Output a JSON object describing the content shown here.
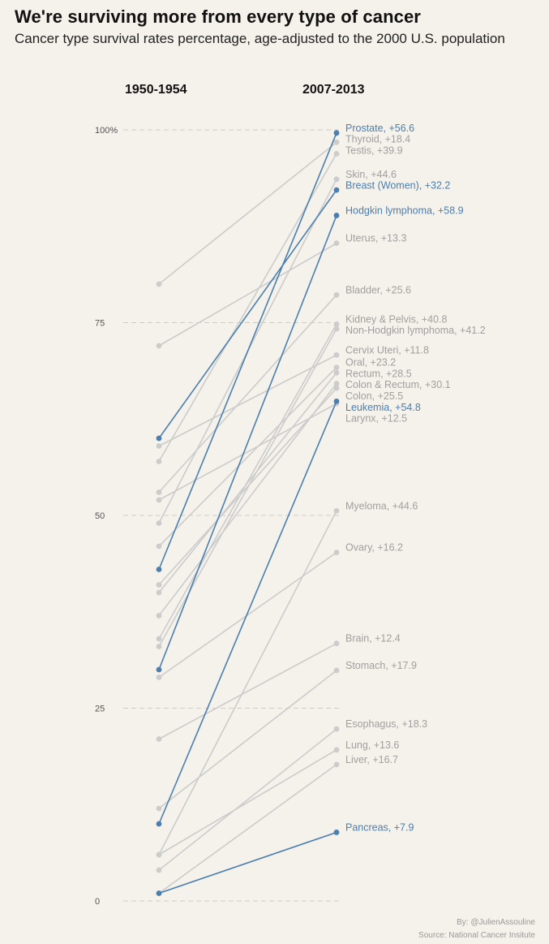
{
  "title": "We're surviving more from every type of cancer",
  "subtitle": "Cancer type survival rates percentage, age-adjusted to the 2000 U.S. population",
  "credit_by": "By: @JulienAssouline",
  "credit_source": "Source: National Cancer Insitute",
  "colors": {
    "highlight": "#4a7fb0",
    "muted": "#cccccc",
    "muted_label": "#a0a0a0",
    "grid": "#d0ccc6",
    "background": "#f5f1eb"
  },
  "chart_data": {
    "type": "slope",
    "columns": [
      "1950-1954",
      "2007-2013"
    ],
    "ylim": [
      0,
      100
    ],
    "yticks": [
      0,
      25,
      50,
      75,
      100
    ],
    "ytick_labels": [
      "0",
      "25",
      "50",
      "75",
      "100%"
    ],
    "grid": "dashed-horizontal",
    "series": [
      {
        "name": "Prostate",
        "start": 43,
        "end": 99.6,
        "change_label": "+56.6",
        "highlight": true
      },
      {
        "name": "Thyroid",
        "start": 80,
        "end": 98.4,
        "change_label": "+18.4",
        "highlight": false
      },
      {
        "name": "Testis",
        "start": 57,
        "end": 96.9,
        "change_label": "+39.9",
        "highlight": false
      },
      {
        "name": "Skin",
        "start": 49,
        "end": 93.6,
        "change_label": "+44.6",
        "highlight": false
      },
      {
        "name": "Breast (Women)",
        "start": 60,
        "end": 92.2,
        "change_label": "+32.2",
        "highlight": true
      },
      {
        "name": "Hodgkin lymphoma",
        "start": 30,
        "end": 88.9,
        "change_label": "+58.9",
        "highlight": true
      },
      {
        "name": "Uterus",
        "start": 72,
        "end": 85.3,
        "change_label": "+13.3",
        "highlight": false
      },
      {
        "name": "Bladder",
        "start": 53,
        "end": 78.6,
        "change_label": "+25.6",
        "highlight": false
      },
      {
        "name": "Kidney & Pelvis",
        "start": 34,
        "end": 74.8,
        "change_label": "+40.8",
        "highlight": false
      },
      {
        "name": "Non-Hodgkin lymphoma",
        "start": 33,
        "end": 74.2,
        "change_label": "+41.2",
        "highlight": false
      },
      {
        "name": "Cervix Uteri",
        "start": 59,
        "end": 70.8,
        "change_label": "+11.8",
        "highlight": false
      },
      {
        "name": "Oral",
        "start": 46,
        "end": 69.2,
        "change_label": "+23.2",
        "highlight": false
      },
      {
        "name": "Rectum",
        "start": 40,
        "end": 68.5,
        "change_label": "+28.5",
        "highlight": false
      },
      {
        "name": "Colon & Rectum",
        "start": 37,
        "end": 67.1,
        "change_label": "+30.1",
        "highlight": false
      },
      {
        "name": "Colon",
        "start": 41,
        "end": 66.5,
        "change_label": "+25.5",
        "highlight": false
      },
      {
        "name": "Leukemia",
        "start": 10,
        "end": 64.8,
        "change_label": "+54.8",
        "highlight": true
      },
      {
        "name": "Larynx",
        "start": 52,
        "end": 64.5,
        "change_label": "+12.5",
        "highlight": false
      },
      {
        "name": "Myeloma",
        "start": 6,
        "end": 50.6,
        "change_label": "+44.6",
        "highlight": false
      },
      {
        "name": "Ovary",
        "start": 29,
        "end": 45.2,
        "change_label": "+16.2",
        "highlight": false
      },
      {
        "name": "Brain",
        "start": 21,
        "end": 33.4,
        "change_label": "+12.4",
        "highlight": false
      },
      {
        "name": "Stomach",
        "start": 12,
        "end": 29.9,
        "change_label": "+17.9",
        "highlight": false
      },
      {
        "name": "Esophagus",
        "start": 4,
        "end": 22.3,
        "change_label": "+18.3",
        "highlight": false
      },
      {
        "name": "Lung",
        "start": 6,
        "end": 19.6,
        "change_label": "+13.6",
        "highlight": false
      },
      {
        "name": "Liver",
        "start": 1,
        "end": 17.7,
        "change_label": "+16.7",
        "highlight": false
      },
      {
        "name": "Pancreas",
        "start": 1,
        "end": 8.9,
        "change_label": "+7.9",
        "highlight": true
      }
    ]
  }
}
